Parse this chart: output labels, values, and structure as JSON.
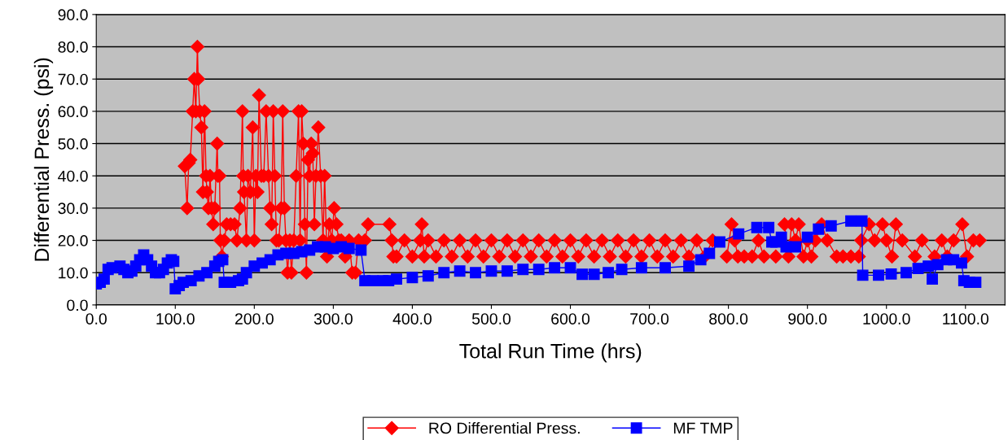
{
  "chart_data": {
    "type": "line",
    "xlabel": "Total Run Time (hrs)",
    "ylabel": "Differential Press. (psi)",
    "xlim": [
      0,
      1150
    ],
    "ylim": [
      0,
      90
    ],
    "xticks": [
      {
        "value": 0,
        "label": "0.0"
      },
      {
        "value": 100,
        "label": "100.0"
      },
      {
        "value": 200,
        "label": "200.0"
      },
      {
        "value": 300,
        "label": "300.0"
      },
      {
        "value": 400,
        "label": "400.0"
      },
      {
        "value": 500,
        "label": "500.0"
      },
      {
        "value": 600,
        "label": "600.0"
      },
      {
        "value": 700,
        "label": "700.0"
      },
      {
        "value": 800,
        "label": "800.0"
      },
      {
        "value": 900,
        "label": "900.0"
      },
      {
        "value": 1000,
        "label": "1000.0"
      },
      {
        "value": 1100,
        "label": "1100.0"
      }
    ],
    "yticks": [
      {
        "value": 0,
        "label": "0.0"
      },
      {
        "value": 10,
        "label": "10.0"
      },
      {
        "value": 20,
        "label": "20.0"
      },
      {
        "value": 30,
        "label": "30.0"
      },
      {
        "value": 40,
        "label": "40.0"
      },
      {
        "value": 50,
        "label": "50.0"
      },
      {
        "value": 60,
        "label": "60.0"
      },
      {
        "value": 70,
        "label": "70.0"
      },
      {
        "value": 80,
        "label": "80.0"
      },
      {
        "value": 90,
        "label": "90.0"
      }
    ],
    "grid": "y",
    "legend": "bottom",
    "line_style": "solid",
    "series": [
      {
        "name": "RO Differential Press.",
        "color": "#ff0000",
        "marker": "diamond",
        "x": [
          112,
          115,
          117,
          119,
          122,
          124,
          126,
          128,
          129,
          131,
          133,
          135,
          137,
          139,
          140,
          142,
          144,
          146,
          148,
          150,
          153,
          154,
          156,
          157,
          159,
          162,
          165,
          170,
          175,
          178,
          182,
          185,
          186,
          187,
          190,
          192,
          195,
          198,
          200,
          202,
          204,
          206,
          209,
          212,
          215,
          218,
          220,
          222,
          224,
          226,
          228,
          231,
          234,
          236,
          238,
          240,
          242,
          245,
          247,
          250,
          253,
          256,
          258,
          260,
          262,
          264,
          266,
          268,
          270,
          272,
          274,
          276,
          278,
          281,
          284,
          287,
          289,
          292,
          295,
          298,
          301,
          304,
          307,
          310,
          315,
          320,
          324,
          328,
          332,
          340,
          344,
          371,
          374,
          376,
          380,
          390,
          400,
          410,
          412,
          415,
          420,
          430,
          440,
          450,
          460,
          470,
          480,
          490,
          500,
          510,
          520,
          530,
          540,
          550,
          560,
          570,
          580,
          590,
          600,
          610,
          620,
          630,
          640,
          650,
          660,
          670,
          680,
          690,
          700,
          710,
          720,
          730,
          740,
          750,
          760,
          770,
          780,
          790,
          798,
          804,
          808,
          812,
          820,
          830,
          838,
          845,
          852,
          860,
          866,
          871,
          876,
          880,
          885,
          889,
          895,
          900,
          905,
          910,
          918,
          925,
          937,
          945,
          955,
          965,
          968,
          978,
          985,
          995,
          1000,
          1007,
          1012,
          1020,
          1036,
          1045,
          1061,
          1070,
          1077,
          1085,
          1096,
          1102,
          1110,
          1118
        ],
        "values": [
          43,
          30,
          44,
          45,
          60,
          70,
          60,
          80,
          70,
          60,
          55,
          35,
          60,
          40,
          35,
          30,
          40,
          30,
          25,
          30,
          50,
          40,
          40,
          20,
          15,
          20,
          25,
          25,
          25,
          20,
          30,
          60,
          40,
          35,
          20,
          40,
          35,
          55,
          20,
          40,
          35,
          65,
          40,
          40,
          60,
          40,
          30,
          25,
          60,
          40,
          20,
          20,
          30,
          60,
          30,
          20,
          10,
          20,
          10,
          20,
          40,
          60,
          20,
          60,
          50,
          25,
          10,
          45,
          40,
          50,
          47,
          25,
          40,
          55,
          40,
          20,
          40,
          15,
          25,
          20,
          30,
          25,
          20,
          20,
          15,
          20,
          10,
          10,
          20,
          20,
          25,
          25,
          20,
          15,
          15,
          20,
          15,
          20,
          25,
          15,
          20,
          15,
          20,
          15,
          20,
          15,
          20,
          15,
          20,
          15,
          20,
          15,
          20,
          15,
          20,
          15,
          20,
          15,
          20,
          15,
          20,
          15,
          20,
          15,
          20,
          15,
          20,
          15,
          20,
          15,
          20,
          15,
          20,
          15,
          20,
          15,
          20,
          null,
          15,
          25,
          20,
          15,
          15,
          15,
          20,
          15,
          null,
          15,
          null,
          25,
          15,
          25,
          20,
          25,
          15,
          20,
          15,
          20,
          25,
          20,
          15,
          15,
          15,
          15,
          20,
          25,
          20,
          25,
          20,
          15,
          25,
          20,
          15,
          20,
          15,
          20,
          15,
          20,
          25,
          15,
          20,
          20
        ]
      },
      {
        "name": "MF TMP",
        "color": "#0000ff",
        "marker": "square",
        "x": [
          0,
          5,
          10,
          15,
          20,
          30,
          35,
          40,
          45,
          50,
          55,
          60,
          65,
          70,
          75,
          80,
          85,
          90,
          95,
          98,
          100,
          105,
          110,
          120,
          130,
          140,
          150,
          155,
          160,
          162,
          170,
          180,
          185,
          190,
          200,
          210,
          220,
          230,
          240,
          250,
          260,
          270,
          280,
          290,
          300,
          310,
          320,
          335,
          340,
          350,
          363,
          370,
          380,
          400,
          420,
          440,
          460,
          480,
          500,
          520,
          540,
          560,
          580,
          600,
          615,
          630,
          648,
          665,
          690,
          720,
          750,
          765,
          776,
          789,
          813,
          836,
          851,
          855,
          860,
          867,
          873,
          885,
          900,
          914,
          930,
          955,
          969,
          970,
          990,
          1006,
          1025,
          1040,
          1053,
          1058,
          1065,
          1076,
          1085,
          1095,
          1098,
          1105,
          1113
        ],
        "values": [
          6.5,
          7,
          8,
          11,
          11.5,
          12,
          11,
          10,
          10.5,
          12,
          14,
          15.5,
          14,
          12,
          10,
          10,
          11,
          13,
          14,
          13.5,
          5,
          6,
          7,
          7.5,
          9,
          10,
          12,
          13.5,
          14,
          7,
          7,
          7.5,
          8,
          10,
          12,
          13,
          14,
          15.5,
          16,
          16,
          16.5,
          17,
          18,
          18,
          17.5,
          18,
          17.5,
          17,
          7.5,
          7.5,
          7.5,
          7.5,
          8,
          8.5,
          9,
          10,
          10.5,
          10,
          10.5,
          10.5,
          11,
          11,
          11.5,
          11.5,
          9.5,
          9.5,
          10,
          11,
          11.5,
          11.5,
          12,
          14,
          16,
          19.5,
          22,
          24,
          24,
          19.5,
          19.5,
          21,
          18,
          18,
          21,
          23.5,
          24.5,
          26,
          26,
          9.2,
          9.2,
          9.6,
          10,
          11.3,
          12,
          8,
          12.5,
          14,
          14,
          13,
          7.5,
          7,
          7
        ]
      }
    ]
  }
}
